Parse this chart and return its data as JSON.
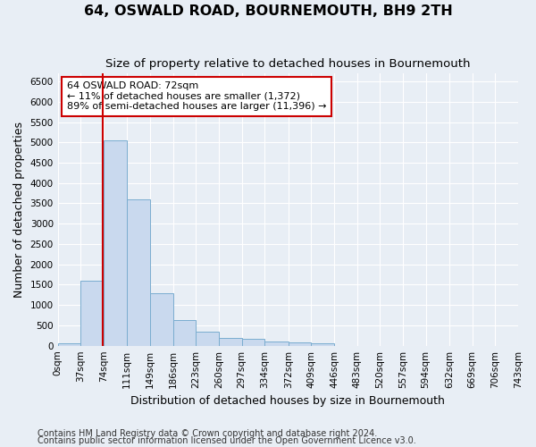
{
  "title": "64, OSWALD ROAD, BOURNEMOUTH, BH9 2TH",
  "subtitle": "Size of property relative to detached houses in Bournemouth",
  "xlabel": "Distribution of detached houses by size in Bournemouth",
  "ylabel": "Number of detached properties",
  "footnote1": "Contains HM Land Registry data © Crown copyright and database right 2024.",
  "footnote2": "Contains public sector information licensed under the Open Government Licence v3.0.",
  "annotation_title": "64 OSWALD ROAD: 72sqm",
  "annotation_line1": "← 11% of detached houses are smaller (1,372)",
  "annotation_line2": "89% of semi-detached houses are larger (11,396) →",
  "property_size": 72,
  "bar_color": "#c9d9ee",
  "bar_edge_color": "#7aadcf",
  "red_line_color": "#cc0000",
  "annotation_box_color": "#ffffff",
  "annotation_box_edge": "#cc0000",
  "background_color": "#e8eef5",
  "bin_edges": [
    0,
    37,
    74,
    111,
    149,
    186,
    223,
    260,
    297,
    334,
    372,
    409,
    446,
    483,
    520,
    557,
    594,
    632,
    669,
    706,
    743
  ],
  "bin_labels": [
    "0sqm",
    "37sqm",
    "74sqm",
    "111sqm",
    "149sqm",
    "186sqm",
    "223sqm",
    "260sqm",
    "297sqm",
    "334sqm",
    "372sqm",
    "409sqm",
    "446sqm",
    "483sqm",
    "520sqm",
    "557sqm",
    "594sqm",
    "632sqm",
    "669sqm",
    "706sqm",
    "743sqm"
  ],
  "bar_heights": [
    50,
    1600,
    5050,
    3600,
    1300,
    620,
    350,
    200,
    160,
    110,
    80,
    60,
    0,
    0,
    0,
    0,
    0,
    0,
    0,
    0
  ],
  "ylim": [
    0,
    6700
  ],
  "yticks": [
    0,
    500,
    1000,
    1500,
    2000,
    2500,
    3000,
    3500,
    4000,
    4500,
    5000,
    5500,
    6000,
    6500
  ],
  "grid_color": "#ffffff",
  "title_fontsize": 11.5,
  "subtitle_fontsize": 9.5,
  "label_fontsize": 9,
  "tick_fontsize": 7.5,
  "annotation_fontsize": 8,
  "footnote_fontsize": 7
}
